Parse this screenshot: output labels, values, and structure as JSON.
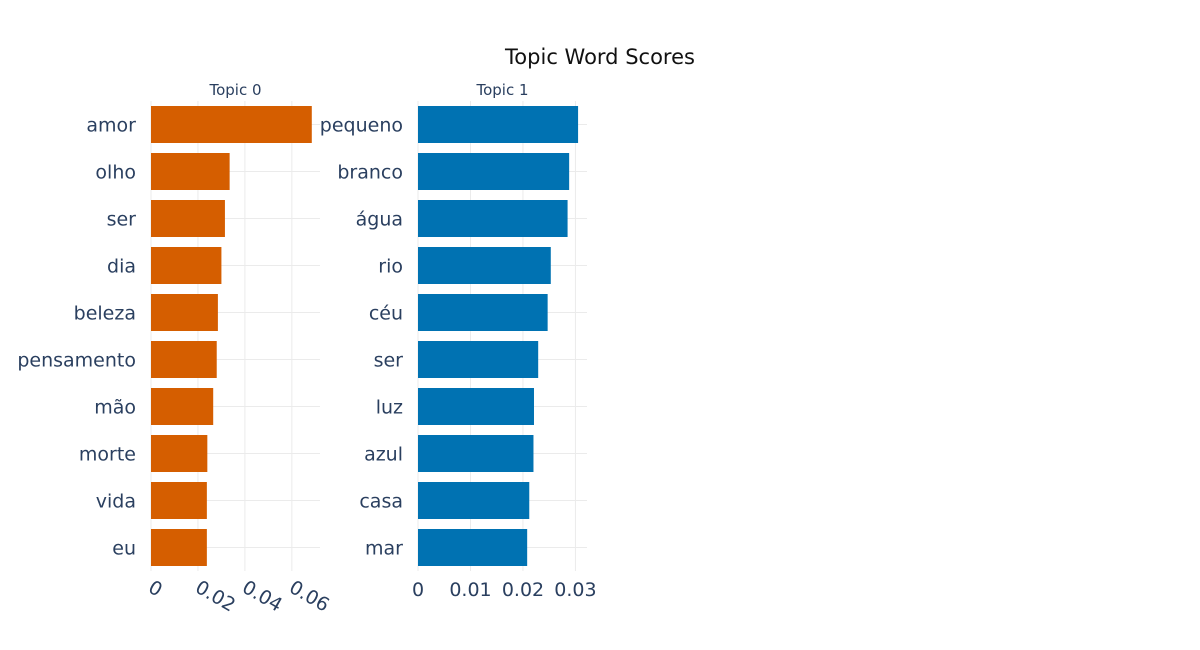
{
  "chart_data": {
    "type": "bar",
    "orientation": "horizontal",
    "title": "Topic Word Scores",
    "grid": true,
    "panels": [
      {
        "subtitle": "Topic 0",
        "color": "#D55E00",
        "categories": [
          "amor",
          "olho",
          "ser",
          "dia",
          "beleza",
          "pensamento",
          "mão",
          "morte",
          "vida",
          "eu"
        ],
        "values": [
          0.0685,
          0.0335,
          0.0315,
          0.03,
          0.0285,
          0.028,
          0.0265,
          0.024,
          0.0238,
          0.0238
        ],
        "xlim": [
          0,
          0.072
        ],
        "xticks": [
          0,
          0.02,
          0.04,
          0.06
        ],
        "xtick_labels": [
          "0",
          "0.02",
          "0.04",
          "0.06"
        ]
      },
      {
        "subtitle": "Topic 1",
        "color": "#0072B2",
        "categories": [
          "pequeno",
          "branco",
          "água",
          "rio",
          "céu",
          "ser",
          "luz",
          "azul",
          "casa",
          "mar"
        ],
        "values": [
          0.0305,
          0.0288,
          0.0285,
          0.0253,
          0.0247,
          0.0229,
          0.0221,
          0.022,
          0.0212,
          0.0208
        ],
        "xlim": [
          0,
          0.0322
        ],
        "xticks": [
          0,
          0.01,
          0.02,
          0.03
        ],
        "xtick_labels": [
          "0",
          "0.01",
          "0.02",
          "0.03"
        ]
      }
    ]
  }
}
